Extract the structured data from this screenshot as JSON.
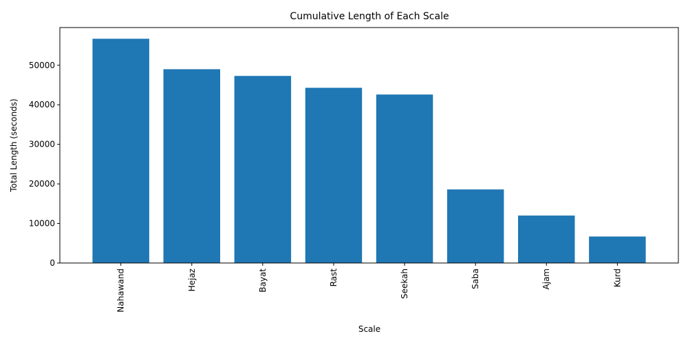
{
  "chart_data": {
    "type": "bar",
    "title": "Cumulative Length of Each Scale",
    "xlabel": "Scale",
    "ylabel": "Total Length (seconds)",
    "categories": [
      "Nahawand",
      "Hejaz",
      "Bayat",
      "Rast",
      "Seekah",
      "Saba",
      "Ajam",
      "Kurd"
    ],
    "values": [
      56700,
      49000,
      47300,
      44300,
      42600,
      18600,
      12000,
      6700
    ],
    "ylim": [
      0,
      59535
    ],
    "yticks": [
      0,
      10000,
      20000,
      30000,
      40000,
      50000
    ],
    "grid": false,
    "legend": "none",
    "bar_color": "#1f77b4"
  }
}
